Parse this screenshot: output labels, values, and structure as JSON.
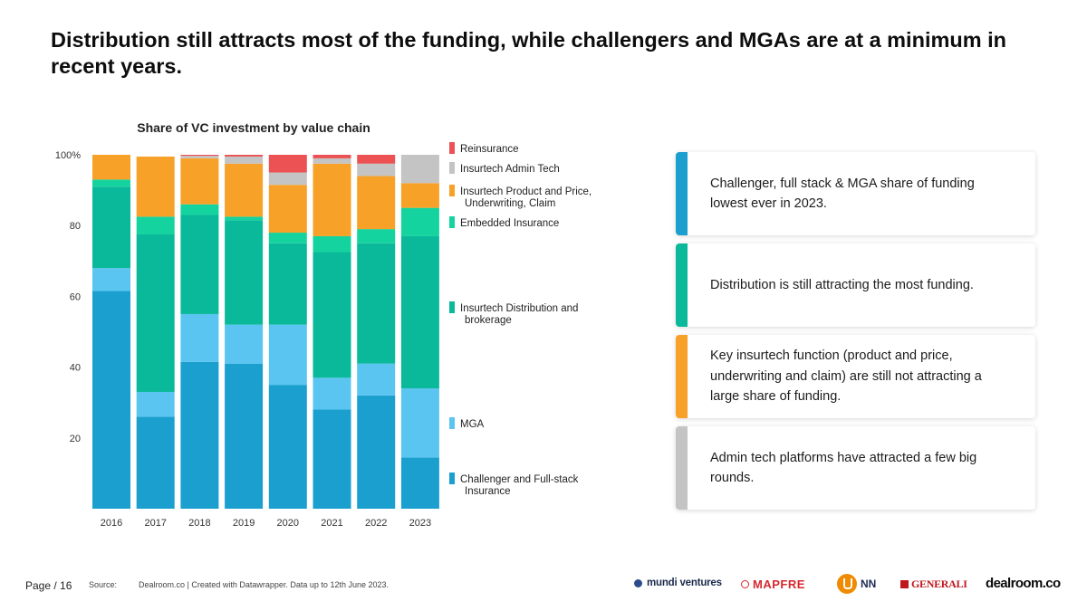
{
  "title": "Distribution still attracts most of the funding, while challengers and MGAs are at a minimum in recent years.",
  "chart_data": {
    "type": "bar",
    "stacked": true,
    "title": "Share of VC investment by value chain",
    "xlabel": "",
    "ylabel": "",
    "ylim": [
      0,
      100
    ],
    "yticks": [
      "20",
      "40",
      "60",
      "80",
      "100%"
    ],
    "ytick_values": [
      20,
      40,
      60,
      80,
      100
    ],
    "categories": [
      "2016",
      "2017",
      "2018",
      "2019",
      "2020",
      "2021",
      "2022",
      "2023"
    ],
    "legend_position": "right",
    "series": [
      {
        "name": "Challenger and Full-stack Insurance",
        "name_lines": [
          "Challenger and Full-stack",
          "Insurance"
        ],
        "color": "#1a9fcf",
        "values": [
          61.5,
          26,
          41.5,
          41,
          35,
          28,
          32,
          14.5
        ]
      },
      {
        "name": "MGA",
        "name_lines": [
          "MGA"
        ],
        "color": "#5bc5f2",
        "values": [
          6.5,
          7,
          13.5,
          11,
          17,
          9,
          9,
          19.5
        ]
      },
      {
        "name": "Insurtech Distribution and brokerage",
        "name_lines": [
          "Insurtech Distribution and",
          "brokerage"
        ],
        "color": "#09b99a",
        "values": [
          23,
          44.5,
          28,
          29.5,
          23,
          35.5,
          34,
          43
        ]
      },
      {
        "name": "Embedded Insurance",
        "name_lines": [
          "Embedded Insurance"
        ],
        "color": "#15d39e",
        "values": [
          2,
          5,
          3,
          1,
          3,
          4.5,
          4,
          8
        ]
      },
      {
        "name": "Insurtech Product and Price, Underwriting, Claim",
        "name_lines": [
          "Insurtech Product and Price,",
          "Underwriting, Claim"
        ],
        "color": "#f7a128",
        "values": [
          7,
          17,
          13,
          15,
          13.5,
          20.5,
          15,
          7
        ]
      },
      {
        "name": "Insurtech Admin Tech",
        "name_lines": [
          "Insurtech Admin Tech"
        ],
        "color": "#c4c4c4",
        "values": [
          0,
          0,
          0.7,
          2,
          3.5,
          1.5,
          3.5,
          8
        ]
      },
      {
        "name": "Reinsurance",
        "name_lines": [
          "Reinsurance"
        ],
        "color": "#ec5254",
        "values": [
          0,
          0,
          0.3,
          0.5,
          5,
          1,
          2.5,
          0
        ]
      }
    ]
  },
  "cards": [
    {
      "text": "Challenger, full stack & MGA share of funding lowest ever in 2023.",
      "color": "#1a9fcf"
    },
    {
      "text": "Distribution is still attracting the most funding.",
      "color": "#09b99a"
    },
    {
      "text": "Key insurtech function (product and price, underwriting and claim) are still not attracting a large share of funding.",
      "color": "#f7a128"
    },
    {
      "text": "Admin tech platforms have attracted a few big rounds.",
      "color": "#c4c4c4"
    }
  ],
  "footer": {
    "page_prefix": "Page",
    "page_number": "/ 16",
    "source_label": "Source:",
    "source_text": "Dealroom.co | Created with Datawrapper.  Data up to 12th June 2023."
  },
  "logos": {
    "mundi": "mundi ventures",
    "mapfre": "MAPFRE",
    "nn": "NN",
    "generali": "GENERALI",
    "dealroom": "dealroom.co"
  }
}
